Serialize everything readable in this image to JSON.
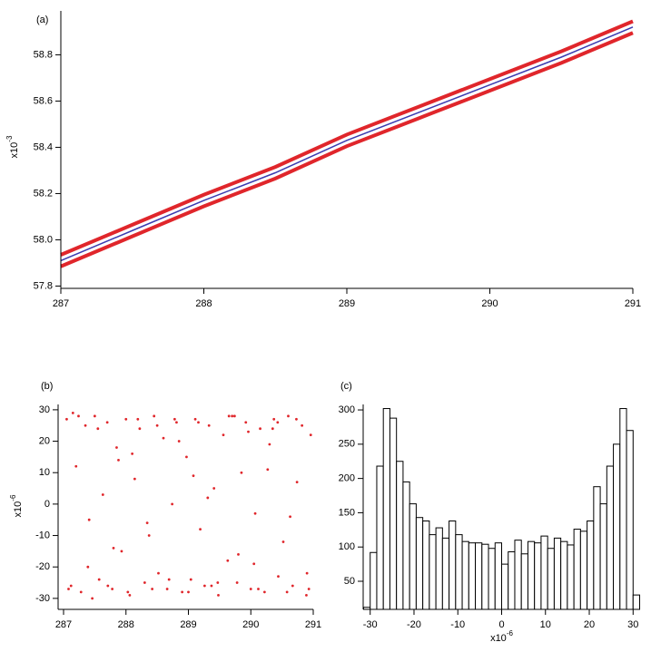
{
  "chart_data": [
    {
      "type": "line",
      "label": "(a)",
      "y_unit": {
        "base": "x10",
        "exponent": "-3"
      },
      "x": [
        287,
        287.5,
        288,
        288.5,
        289,
        289.5,
        290,
        290.5,
        291
      ],
      "series": [
        {
          "color": "#e0262b",
          "values": [
            57.935,
            58.065,
            58.195,
            58.315,
            58.455,
            58.575,
            58.695,
            58.815,
            58.945
          ]
        },
        {
          "color": "#e0262b",
          "values": [
            57.885,
            58.015,
            58.145,
            58.265,
            58.405,
            58.525,
            58.645,
            58.765,
            58.895
          ]
        },
        {
          "color": "#3a3ab0",
          "values": [
            57.91,
            58.04,
            58.17,
            58.29,
            58.43,
            58.55,
            58.67,
            58.79,
            58.92
          ]
        }
      ],
      "xlim": [
        287,
        291
      ],
      "ylim": [
        57.79,
        58.99
      ],
      "xticks": [
        287,
        288,
        289,
        290,
        291
      ],
      "yticks": [
        57.8,
        {
          "value": 58,
          "label": "58.0"
        },
        58.2,
        58.4,
        58.6,
        58.8
      ]
    },
    {
      "type": "scatter",
      "label": "(b)",
      "color": "#e0262b",
      "y_unit": {
        "base": "x10",
        "exponent": "-6"
      },
      "x": [
        287.05,
        287.12,
        287.2,
        287.28,
        287.35,
        287.41,
        287.5,
        287.57,
        287.63,
        287.7,
        287.78,
        287.85,
        287.93,
        288.0,
        288.06,
        288.14,
        288.22,
        288.3,
        288.37,
        288.45,
        288.52,
        288.6,
        288.66,
        288.74,
        288.81,
        288.9,
        288.97,
        289.04,
        289.11,
        289.19,
        289.26,
        289.33,
        289.41,
        289.48,
        289.56,
        289.63,
        289.7,
        289.78,
        289.85,
        289.92,
        290.0,
        290.07,
        290.15,
        290.22,
        290.3,
        290.37,
        290.44,
        290.52,
        290.6,
        290.67,
        290.74,
        290.82,
        290.89,
        290.96,
        287.08,
        287.24,
        287.39,
        287.55,
        287.71,
        287.88,
        288.03,
        288.19,
        288.34,
        288.5,
        288.69,
        288.85,
        289.0,
        289.16,
        289.31,
        289.47,
        289.65,
        289.8,
        289.96,
        290.12,
        290.27,
        290.43,
        290.58,
        290.73,
        290.9,
        287.15,
        287.46,
        287.8,
        288.1,
        288.42,
        288.78,
        289.08,
        289.37,
        289.74,
        290.05,
        290.35,
        290.63,
        290.93
      ],
      "values": [
        27,
        -26,
        12,
        -28,
        25,
        -5,
        28,
        -24,
        3,
        26,
        -27,
        18,
        -15,
        27,
        -29,
        8,
        24,
        -25,
        -10,
        28,
        -22,
        21,
        -27,
        0,
        26,
        -28,
        15,
        -24,
        27,
        -8,
        -26,
        25,
        5,
        -29,
        22,
        -18,
        28,
        -25,
        10,
        26,
        -27,
        -3,
        24,
        -28,
        19,
        27,
        -23,
        -12,
        28,
        -26,
        7,
        25,
        -29,
        22,
        -27,
        28,
        -20,
        24,
        -26,
        14,
        -28,
        27,
        -6,
        25,
        -24,
        20,
        -28,
        26,
        2,
        -25,
        28,
        -16,
        23,
        -27,
        11,
        26,
        -28,
        27,
        -22,
        29,
        -30,
        -14,
        16,
        -27,
        27,
        9,
        -26,
        28,
        -19,
        24,
        -4,
        -27
      ],
      "xlim": [
        287,
        291
      ],
      "ylim": [
        -33.5,
        31.7
      ],
      "xticks": [
        287,
        288,
        289,
        290,
        291
      ],
      "yticks": [
        -30,
        -20,
        -10,
        0,
        10,
        20,
        30
      ]
    },
    {
      "type": "histogram",
      "label": "(c)",
      "color": "#ffffff",
      "x_unit": {
        "base": "x10",
        "exponent": "-6"
      },
      "bins": [
        -31.5,
        -30,
        -28.5,
        -27,
        -25.5,
        -24,
        -22.5,
        -21,
        -19.5,
        -18,
        -16.5,
        -15,
        -13.5,
        -12,
        -10.5,
        -9,
        -7.5,
        -6,
        -4.5,
        -3,
        -1.5,
        0,
        1.5,
        3,
        4.5,
        6,
        7.5,
        9,
        10.5,
        12,
        13.5,
        15,
        16.5,
        18,
        19.5,
        21,
        22.5,
        24,
        25.5,
        27,
        28.5,
        30,
        31.5
      ],
      "values": [
        12,
        92,
        218,
        302,
        288,
        225,
        195,
        163,
        143,
        138,
        118,
        128,
        113,
        138,
        118,
        108,
        106,
        106,
        104,
        98,
        106,
        75,
        93,
        110,
        90,
        108,
        106,
        116,
        98,
        113,
        108,
        103,
        126,
        123,
        138,
        188,
        163,
        218,
        250,
        302,
        270,
        30
      ],
      "xlim": [
        -31.6,
        31.6
      ],
      "ylim": [
        9,
        308
      ],
      "xticks": [
        -30,
        -20,
        -10,
        0,
        10,
        20,
        30
      ],
      "yticks": [
        50,
        100,
        150,
        200,
        250,
        300
      ]
    }
  ]
}
